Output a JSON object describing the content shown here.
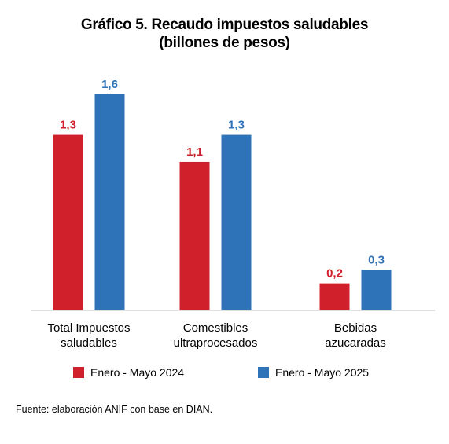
{
  "chart_data": {
    "type": "bar",
    "title": "Gráfico 5. Recaudo impuestos saludables",
    "subtitle": "(billones de pesos)",
    "categories": [
      [
        "Total Impuestos",
        "saludables"
      ],
      [
        "Comestibles",
        "ultraprocesados"
      ],
      [
        "Bebidas",
        "azucaradas"
      ]
    ],
    "series": [
      {
        "name": "Enero - Mayo 2024",
        "values": [
          1.3,
          1.1,
          0.2
        ],
        "labels": [
          "1,3",
          "1,1",
          "0,2"
        ],
        "color": "#d0202b"
      },
      {
        "name": "Enero - Mayo 2025",
        "values": [
          1.6,
          1.3,
          0.3
        ],
        "labels": [
          "1,6",
          "1,3",
          "0,3"
        ],
        "color": "#2e73b8"
      }
    ],
    "ylim": [
      0,
      1.6
    ],
    "grid": false,
    "legend_position": "bottom"
  },
  "source": "Fuente: elaboración ANIF con base en DIAN."
}
